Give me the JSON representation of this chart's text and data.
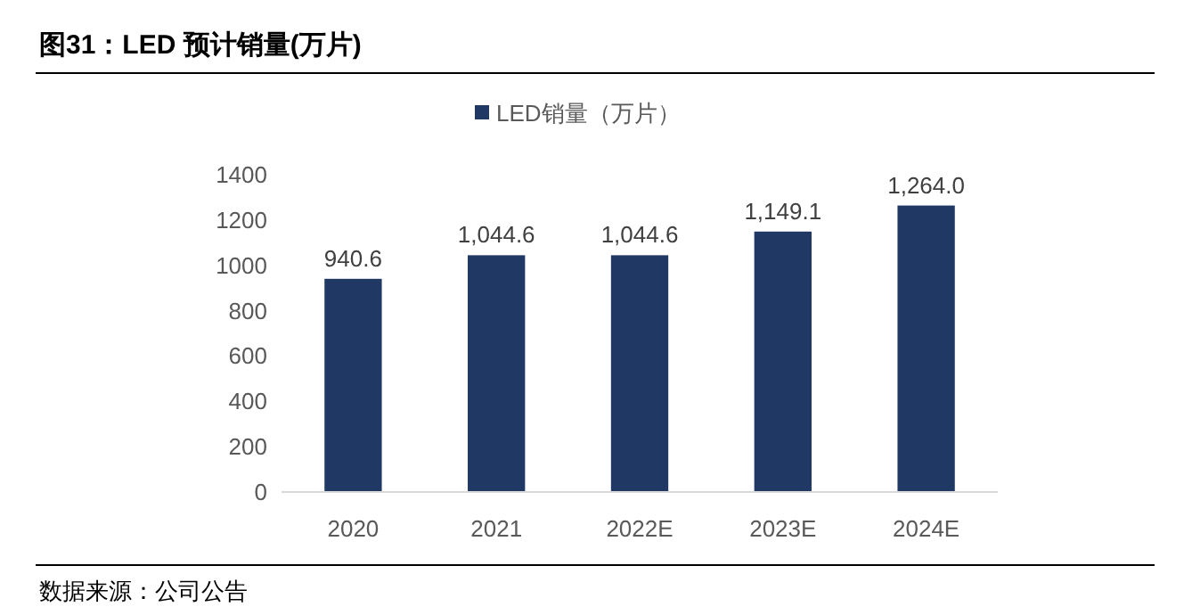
{
  "chart_data": {
    "type": "bar",
    "title": "图31：LED 预计销量(万片)",
    "categories": [
      "2020",
      "2021",
      "2022E",
      "2023E",
      "2024E"
    ],
    "series": [
      {
        "name": "LED销量（万片）",
        "color": "#1f3864",
        "values": [
          940.6,
          1044.6,
          1044.6,
          1149.1,
          1264.0
        ],
        "value_labels": [
          "940.6",
          "1,044.6",
          "1,044.6",
          "1,149.1",
          "1,264.0"
        ]
      }
    ],
    "ylim": [
      0,
      1400
    ],
    "yticks": [
      0,
      200,
      400,
      600,
      800,
      1000,
      1200,
      1400
    ],
    "legend": "top",
    "grid": false,
    "annotations": [
      "数据来源：公司公告"
    ]
  }
}
